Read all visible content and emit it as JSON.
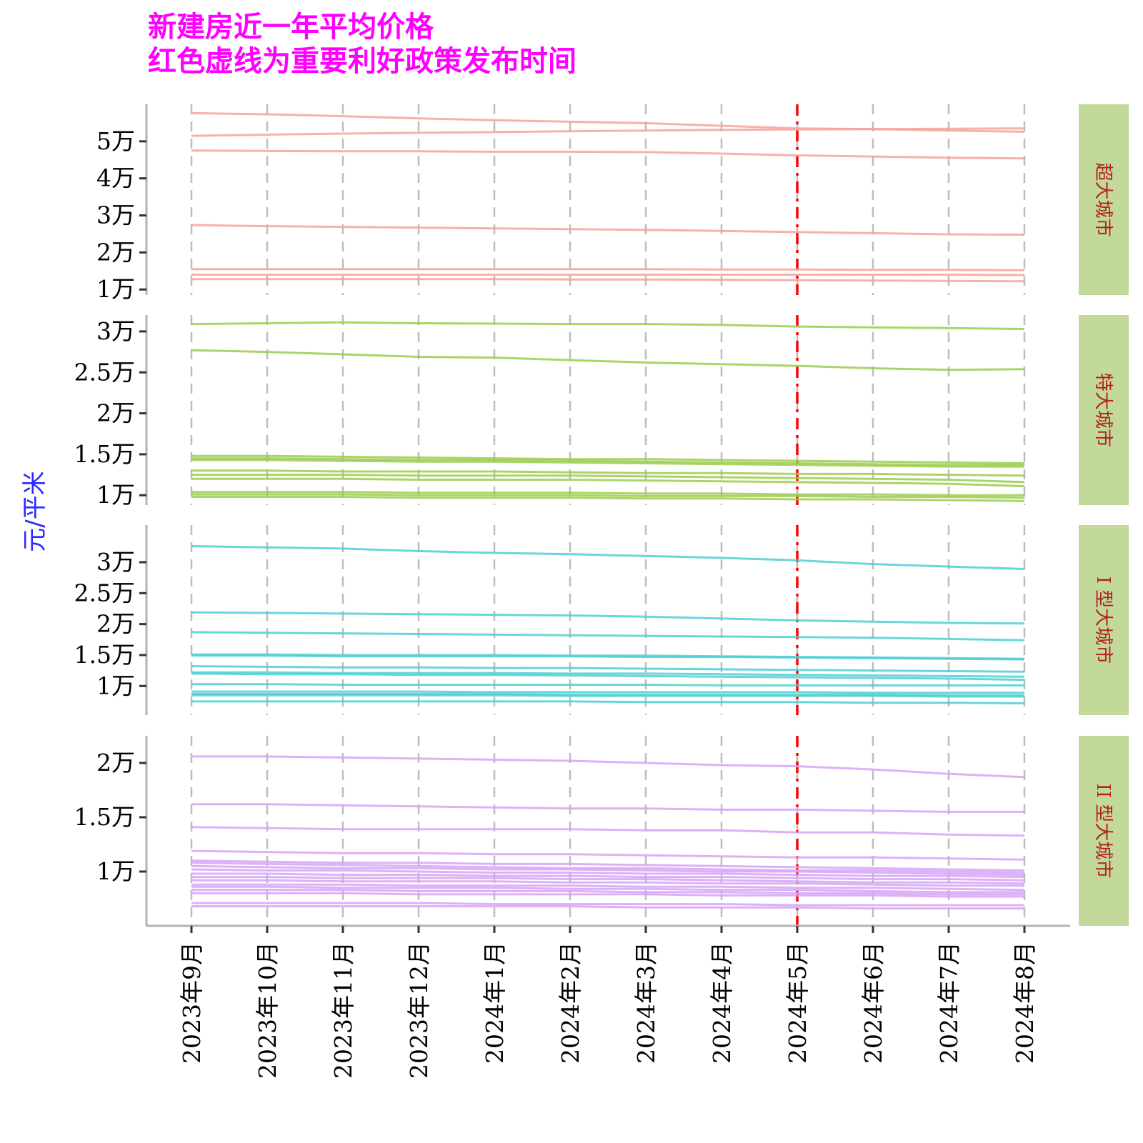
{
  "title": {
    "line1": "新建房近一年平均价格",
    "line2": "红色虚线为重要利好政策发布时间"
  },
  "colors": {
    "title": "#ff00ff",
    "ylabel": "#2a2aff",
    "policy_line": "#ff0000",
    "strip_bg": "#c2d99a",
    "strip_text": "#b22222",
    "grid": "#bdbdbd"
  },
  "chart_data": {
    "type": "line",
    "ylabel": "元/平米",
    "x": [
      "2023年9月",
      "2023年10月",
      "2023年11月",
      "2023年12月",
      "2024年1月",
      "2024年2月",
      "2024年3月",
      "2024年4月",
      "2024年5月",
      "2024年6月",
      "2024年7月",
      "2024年8月"
    ],
    "policy_line_x": "2024年5月",
    "grid": "vertical dashed at each month",
    "panels": [
      {
        "label": "超大城市",
        "color": "#f4a39b",
        "ylim": [
          8500,
          60000
        ],
        "yticks": [
          10000,
          20000,
          30000,
          40000,
          50000
        ],
        "ytick_labels": [
          "1万",
          "2万",
          "3万",
          "4万",
          "5万"
        ],
        "series": [
          {
            "values": [
              57600,
              57300,
              56800,
              56200,
              55700,
              55300,
              54900,
              54200,
              53500,
              53300,
              52900,
              52600
            ]
          },
          {
            "values": [
              51500,
              51800,
              52100,
              52300,
              52500,
              52700,
              52900,
              53100,
              53200,
              53300,
              53400,
              53500
            ]
          },
          {
            "values": [
              47500,
              47400,
              47300,
              47300,
              47200,
              47200,
              47100,
              46700,
              46200,
              45900,
              45600,
              45400
            ]
          },
          {
            "values": [
              27400,
              27100,
              26900,
              26700,
              26500,
              26300,
              26100,
              25800,
              25500,
              25200,
              24900,
              24800
            ]
          },
          {
            "values": [
              15500,
              15500,
              15500,
              15500,
              15500,
              15500,
              15500,
              15400,
              15400,
              15300,
              15300,
              15200
            ]
          },
          {
            "values": [
              14000,
              14000,
              14000,
              14000,
              14000,
              14000,
              14000,
              14000,
              14000,
              14000,
              14000,
              13900
            ]
          },
          {
            "values": [
              12800,
              12800,
              12800,
              12800,
              12800,
              12700,
              12700,
              12600,
              12500,
              12400,
              12300,
              12200
            ]
          }
        ]
      },
      {
        "label": "特大城市",
        "color": "#9ccc4e",
        "ylim": [
          8800,
          32000
        ],
        "yticks": [
          10000,
          15000,
          20000,
          25000,
          30000
        ],
        "ytick_labels": [
          "1万",
          "1.5万",
          "2万",
          "2.5万",
          "3万"
        ],
        "series": [
          {
            "values": [
              30900,
              31000,
              31100,
              31000,
              30950,
              30900,
              30900,
              30800,
              30600,
              30500,
              30400,
              30300
            ]
          },
          {
            "values": [
              27700,
              27500,
              27200,
              26900,
              26800,
              26500,
              26200,
              26000,
              25800,
              25500,
              25300,
              25400
            ]
          },
          {
            "values": [
              14800,
              14800,
              14700,
              14600,
              14500,
              14400,
              14400,
              14300,
              14200,
              14100,
              14000,
              13900
            ]
          },
          {
            "values": [
              14500,
              14500,
              14400,
              14300,
              14300,
              14200,
              14100,
              14000,
              13900,
              13800,
              13700,
              13700
            ]
          },
          {
            "values": [
              14300,
              14300,
              14200,
              14100,
              14100,
              14000,
              13900,
              13800,
              13700,
              13600,
              13500,
              13500
            ]
          },
          {
            "values": [
              13000,
              13000,
              12900,
              12900,
              12900,
              12800,
              12700,
              12700,
              12600,
              12600,
              12500,
              12400
            ]
          },
          {
            "values": [
              12500,
              12500,
              12500,
              12400,
              12400,
              12400,
              12300,
              12200,
              12100,
              12000,
              11900,
              11600
            ]
          },
          {
            "values": [
              12000,
              12000,
              12000,
              11900,
              11900,
              11900,
              11800,
              11700,
              11600,
              11500,
              11400,
              11100
            ]
          },
          {
            "values": [
              10400,
              10400,
              10400,
              10300,
              10300,
              10300,
              10200,
              10200,
              10100,
              10100,
              10000,
              10000
            ]
          },
          {
            "values": [
              10100,
              10100,
              10100,
              10000,
              10000,
              10000,
              9900,
              9900,
              9900,
              9800,
              9800,
              9700
            ]
          },
          {
            "values": [
              9800,
              9800,
              9800,
              9700,
              9700,
              9700,
              9600,
              9600,
              9500,
              9500,
              9400,
              9300
            ]
          }
        ]
      },
      {
        "label": "I 型大城市",
        "color": "#4ecfd4",
        "ylim": [
          5300,
          36000
        ],
        "yticks": [
          10000,
          15000,
          20000,
          25000,
          30000
        ],
        "ytick_labels": [
          "1万",
          "1.5万",
          "2万",
          "2.5万",
          "3万"
        ],
        "series": [
          {
            "values": [
              32600,
              32400,
              32200,
              31800,
              31500,
              31300,
              31000,
              30700,
              30300,
              29700,
              29300,
              28900
            ]
          },
          {
            "values": [
              21900,
              21800,
              21700,
              21600,
              21500,
              21400,
              21200,
              20900,
              20600,
              20400,
              20200,
              20100
            ]
          },
          {
            "values": [
              18700,
              18600,
              18500,
              18400,
              18300,
              18200,
              18100,
              18000,
              17900,
              17800,
              17600,
              17400
            ]
          },
          {
            "values": [
              15100,
              15100,
              15000,
              15000,
              15000,
              14900,
              14900,
              14800,
              14700,
              14600,
              14500,
              14400
            ]
          },
          {
            "values": [
              14900,
              14900,
              14800,
              14800,
              14800,
              14800,
              14700,
              14700,
              14600,
              14500,
              14400,
              14300
            ]
          },
          {
            "values": [
              13200,
              13100,
              13000,
              13000,
              12900,
              12900,
              12800,
              12700,
              12600,
              12500,
              12400,
              12300
            ]
          },
          {
            "values": [
              12200,
              12200,
              12100,
              12100,
              12100,
              12000,
              12000,
              11900,
              11800,
              11700,
              11600,
              11500
            ]
          },
          {
            "values": [
              12000,
              11900,
              11900,
              11800,
              11800,
              11700,
              11600,
              11500,
              11400,
              11300,
              11200,
              11000
            ]
          },
          {
            "values": [
              10300,
              10300,
              10200,
              10200,
              10200,
              10200,
              10200,
              10100,
              10100,
              10100,
              10100,
              10100
            ]
          },
          {
            "values": [
              9100,
              9100,
              9100,
              9100,
              9000,
              9000,
              9000,
              9000,
              9000,
              8900,
              8900,
              8900
            ]
          },
          {
            "values": [
              8700,
              8700,
              8700,
              8700,
              8700,
              8600,
              8600,
              8600,
              8600,
              8600,
              8500,
              8500
            ]
          },
          {
            "values": [
              8500,
              8500,
              8500,
              8500,
              8500,
              8400,
              8400,
              8400,
              8400,
              8400,
              8300,
              8300
            ]
          },
          {
            "values": [
              7500,
              7500,
              7500,
              7500,
              7500,
              7500,
              7400,
              7400,
              7400,
              7300,
              7300,
              7200
            ]
          }
        ]
      },
      {
        "label": "II 型大城市",
        "color": "#d6a3f6",
        "ylim": [
          5000,
          22500
        ],
        "yticks": [
          10000,
          15000,
          20000
        ],
        "ytick_labels": [
          "1万",
          "1.5万",
          "2万"
        ],
        "series": [
          {
            "values": [
              20600,
              20600,
              20500,
              20400,
              20300,
              20200,
              20000,
              19800,
              19700,
              19400,
              19000,
              18700
            ]
          },
          {
            "values": [
              16200,
              16200,
              16100,
              16000,
              15900,
              15800,
              15800,
              15700,
              15700,
              15600,
              15500,
              15500
            ]
          },
          {
            "values": [
              14100,
              14000,
              13900,
              13900,
              13900,
              13900,
              13800,
              13800,
              13600,
              13600,
              13400,
              13300
            ]
          },
          {
            "values": [
              11900,
              11800,
              11700,
              11700,
              11600,
              11600,
              11500,
              11400,
              11300,
              11300,
              11200,
              11100
            ]
          },
          {
            "values": [
              11000,
              10900,
              10800,
              10800,
              10700,
              10700,
              10600,
              10500,
              10400,
              10300,
              10200,
              10100
            ]
          },
          {
            "values": [
              10800,
              10700,
              10600,
              10500,
              10400,
              10300,
              10300,
              10200,
              10100,
              10100,
              10000,
              9900
            ]
          },
          {
            "values": [
              10500,
              10400,
              10300,
              10300,
              10200,
              10200,
              10100,
              10000,
              10000,
              9900,
              9800,
              9700
            ]
          },
          {
            "values": [
              10200,
              10100,
              10100,
              10000,
              9900,
              9900,
              9800,
              9800,
              9700,
              9600,
              9600,
              9500
            ]
          },
          {
            "values": [
              9800,
              9800,
              9700,
              9700,
              9600,
              9600,
              9500,
              9500,
              9400,
              9300,
              9300,
              9200
            ]
          },
          {
            "values": [
              9500,
              9500,
              9400,
              9400,
              9400,
              9300,
              9300,
              9200,
              9100,
              9000,
              9000,
              8900
            ]
          },
          {
            "values": [
              9200,
              9200,
              9100,
              9100,
              9100,
              9000,
              9000,
              8900,
              8900,
              8800,
              8700,
              8700
            ]
          },
          {
            "values": [
              8800,
              8800,
              8800,
              8700,
              8700,
              8700,
              8600,
              8600,
              8500,
              8500,
              8400,
              8300
            ]
          },
          {
            "values": [
              8600,
              8600,
              8500,
              8500,
              8500,
              8400,
              8400,
              8300,
              8300,
              8200,
              8100,
              8100
            ]
          },
          {
            "values": [
              8300,
              8300,
              8300,
              8200,
              8200,
              8200,
              8100,
              8100,
              8000,
              8000,
              7900,
              7900
            ]
          },
          {
            "values": [
              8000,
              8000,
              8000,
              7900,
              7900,
              7900,
              7900,
              7800,
              7800,
              7800,
              7700,
              7700
            ]
          },
          {
            "values": [
              7100,
              7100,
              7100,
              7100,
              7000,
              7000,
              7000,
              7000,
              6900,
              6900,
              6900,
              6900
            ]
          },
          {
            "values": [
              6800,
              6800,
              6800,
              6800,
              6800,
              6800,
              6700,
              6700,
              6700,
              6600,
              6600,
              6600
            ]
          }
        ]
      }
    ]
  }
}
